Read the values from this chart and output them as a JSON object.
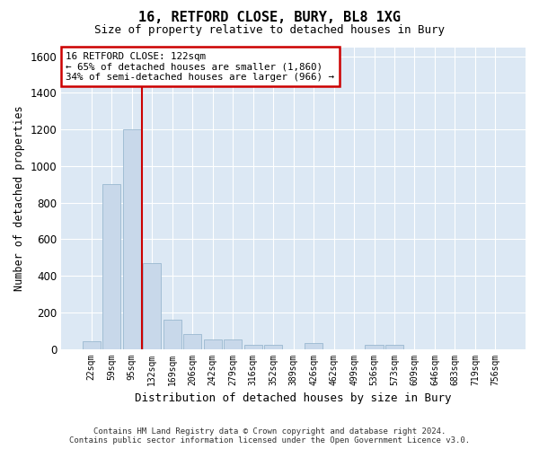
{
  "title": "16, RETFORD CLOSE, BURY, BL8 1XG",
  "subtitle": "Size of property relative to detached houses in Bury",
  "xlabel": "Distribution of detached houses by size in Bury",
  "ylabel": "Number of detached properties",
  "footer_line1": "Contains HM Land Registry data © Crown copyright and database right 2024.",
  "footer_line2": "Contains public sector information licensed under the Open Government Licence v3.0.",
  "bar_color": "#c8d8ea",
  "bar_edge_color": "#9ab8d0",
  "background_color": "#dce8f4",
  "grid_color": "#ffffff",
  "annotation_box_color": "#cc0000",
  "property_line_color": "#cc0000",
  "annotation_text_line1": "16 RETFORD CLOSE: 122sqm",
  "annotation_text_line2": "← 65% of detached houses are smaller (1,860)",
  "annotation_text_line3": "34% of semi-detached houses are larger (966) →",
  "categories": [
    "22sqm",
    "59sqm",
    "95sqm",
    "132sqm",
    "169sqm",
    "206sqm",
    "242sqm",
    "279sqm",
    "316sqm",
    "352sqm",
    "389sqm",
    "426sqm",
    "462sqm",
    "499sqm",
    "536sqm",
    "573sqm",
    "609sqm",
    "646sqm",
    "683sqm",
    "719sqm",
    "756sqm"
  ],
  "values": [
    40,
    900,
    1200,
    470,
    160,
    80,
    50,
    50,
    20,
    20,
    0,
    30,
    0,
    0,
    20,
    20,
    0,
    0,
    0,
    0,
    0
  ],
  "ylim": [
    0,
    1650
  ],
  "yticks": [
    0,
    200,
    400,
    600,
    800,
    1000,
    1200,
    1400,
    1600
  ],
  "property_line_x": 2.5,
  "figsize": [
    6.0,
    5.0
  ],
  "dpi": 100
}
